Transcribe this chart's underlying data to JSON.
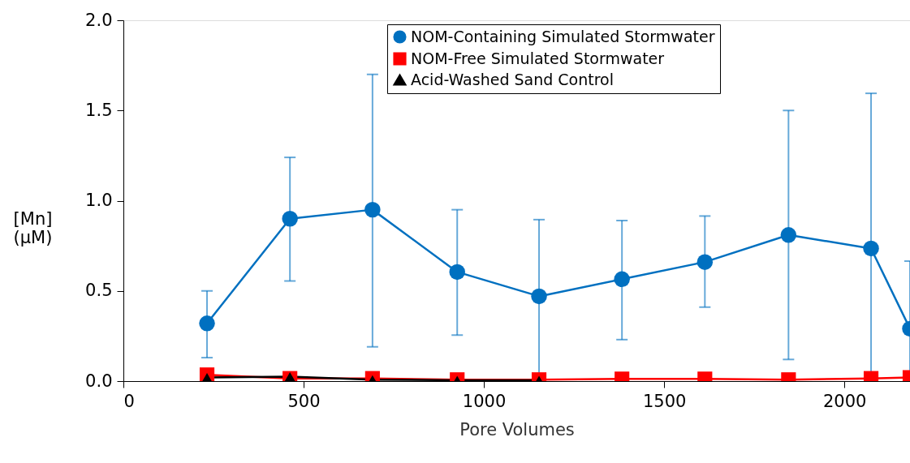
{
  "chart_data": {
    "type": "line",
    "xlabel": "Pore Volumes",
    "ylabel": "[Mn]\n(µM)",
    "x": [
      232,
      462,
      691,
      926,
      1153,
      1383,
      1613,
      1845,
      2074,
      2182
    ],
    "xlim": [
      0,
      2182
    ],
    "xticks": [
      0,
      500,
      1000,
      1500,
      2000
    ],
    "ylim": [
      0,
      2.0
    ],
    "yticks": [
      {
        "value": 0,
        "label": "0.0"
      },
      0.5,
      {
        "value": 1,
        "label": "1.0"
      },
      1.5,
      {
        "value": 2,
        "label": "2.0"
      }
    ],
    "series": [
      {
        "name": "NOM-Containing Simulated Stormwater",
        "color": "#0070c0",
        "marker": "circle",
        "values": [
          0.32,
          0.9,
          0.95,
          0.605,
          0.47,
          0.565,
          0.66,
          0.81,
          0.735,
          0.29
        ],
        "errors": [
          [
            0.13,
            0.5
          ],
          [
            0.555,
            1.24
          ],
          [
            0.19,
            1.7
          ],
          [
            0.255,
            0.95
          ],
          [
            0.0,
            0.895
          ],
          [
            0.23,
            0.89
          ],
          [
            0.41,
            0.915
          ],
          [
            0.12,
            1.5
          ],
          [
            0.0,
            1.595
          ],
          [
            0.0,
            0.665
          ]
        ]
      },
      {
        "name": "NOM-Free Simulated Stormwater",
        "color": "#ff0000",
        "marker": "square",
        "values": [
          0.035,
          0.015,
          0.015,
          0.008,
          0.008,
          0.012,
          0.012,
          0.008,
          0.015,
          0.02
        ]
      },
      {
        "name": "Acid-Washed Sand Control",
        "color": "#000000",
        "marker": "triangle",
        "values": [
          0.02,
          0.025,
          0.008,
          0.005,
          0.005,
          null,
          null,
          null,
          null,
          null
        ],
        "errors": [
          null,
          0.02,
          null,
          null,
          null,
          null,
          null,
          null,
          null,
          null
        ]
      }
    ],
    "legend": "top right",
    "grid": false
  }
}
